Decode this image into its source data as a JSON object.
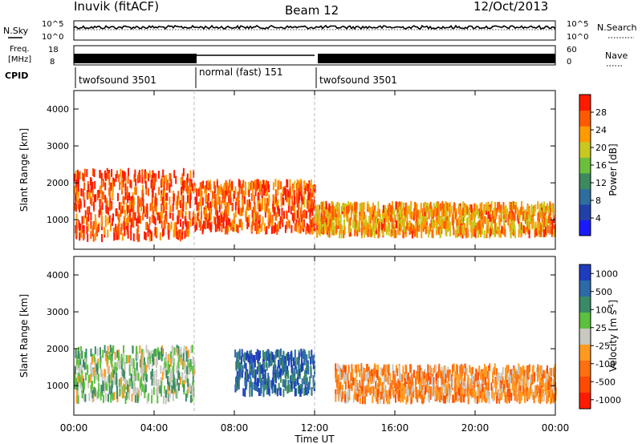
{
  "header": {
    "title": "Inuvik (fitACF)",
    "beam": "Beam 12",
    "date": "12/Oct/2013"
  },
  "noise_panel": {
    "left_label": "N.Sky",
    "right_label": "N.Search",
    "ticks": [
      "10^5",
      "10^0"
    ]
  },
  "freq_panel": {
    "left_label_line1": "Freq.",
    "left_label_line2": "[MHz]",
    "left_ticks": [
      "18",
      "8"
    ],
    "right_label": "Nave",
    "right_ticks": [
      "60",
      "0"
    ]
  },
  "cpid_panel": {
    "label": "CPID",
    "modes": [
      {
        "name": "twofsound 3501",
        "start_hour": 0,
        "end_hour": 6
      },
      {
        "name": "normal (fast) 151",
        "start_hour": 6,
        "end_hour": 12
      },
      {
        "name": "twofsound 3501",
        "start_hour": 12,
        "end_hour": 24
      }
    ]
  },
  "colors": {
    "power": [
      "#1a1aff",
      "#2240a8",
      "#2e6e9e",
      "#3d8a5e",
      "#6cbf3c",
      "#c8c820",
      "#ff9a00",
      "#ff5a00",
      "#ff1a00"
    ],
    "velocity": [
      "#1e3cbe",
      "#2c6aa8",
      "#3a8a68",
      "#5cc040",
      "#c8c8c0",
      "#ff9a20",
      "#ff7010",
      "#ff4a00",
      "#ff1a00"
    ]
  },
  "chart_data": [
    {
      "type": "heatmap",
      "title": "",
      "xlabel": "",
      "ylabel": "Slant Range [km]",
      "xlim": [
        "00:00",
        "24:00"
      ],
      "ylim": [
        200,
        4500
      ],
      "y_ticks": [
        "1000",
        "2000",
        "3000",
        "4000"
      ],
      "colorbar": {
        "label": "Power [dB]",
        "ticks": [
          "4",
          "8",
          "12",
          "16",
          "20",
          "24",
          "28"
        ],
        "range": [
          0,
          30
        ]
      },
      "description_regions": [
        {
          "x": [
            0,
            6
          ],
          "y": [
            500,
            2300
          ],
          "value": 26
        },
        {
          "x": [
            6,
            12
          ],
          "y": [
            700,
            2000
          ],
          "value": 25
        },
        {
          "x": [
            12,
            24
          ],
          "y": [
            600,
            1400
          ],
          "value": 22
        }
      ]
    },
    {
      "type": "heatmap",
      "title": "",
      "xlabel": "Time UT",
      "ylabel": "Slant Range [km]",
      "xlim": [
        "00:00",
        "24:00"
      ],
      "ylim": [
        200,
        4500
      ],
      "x_ticks": [
        "00:00",
        "04:00",
        "08:00",
        "12:00",
        "16:00",
        "20:00",
        "00:00"
      ],
      "y_ticks": [
        "1000",
        "2000",
        "3000",
        "4000"
      ],
      "colorbar": {
        "label": "Velocity [m s^-1]",
        "ticks": [
          "1000",
          "500",
          "100",
          "25",
          "-25",
          "-100",
          "-500",
          "-1000"
        ],
        "range": [
          -1000,
          1000
        ]
      },
      "description_regions": [
        {
          "x": [
            0,
            6
          ],
          "y": [
            600,
            2000
          ],
          "value": 150
        },
        {
          "x": [
            8,
            12
          ],
          "y": [
            800,
            1900
          ],
          "value": 700
        },
        {
          "x": [
            13,
            24
          ],
          "y": [
            600,
            1500
          ],
          "value": -300
        }
      ]
    }
  ]
}
